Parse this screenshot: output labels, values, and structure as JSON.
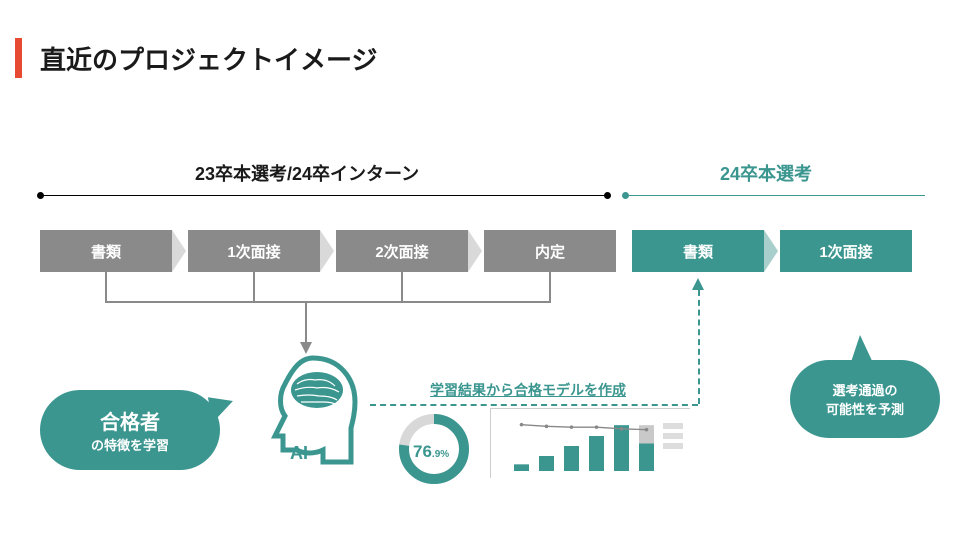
{
  "title": "直近のプロジェクトイメージ",
  "accent_color": "#e74a33",
  "teal": "#3b9690",
  "gray": "#8a8a8a",
  "sections": {
    "left_label": "23卒本選考/24卒インターン",
    "right_label": "24卒本選考"
  },
  "steps": {
    "gray": [
      "書類",
      "1次面接",
      "2次面接",
      "内定"
    ],
    "teal": [
      "書類",
      "1次面接"
    ]
  },
  "ai_label": "AI",
  "bubble_left": {
    "line1": "合格者",
    "line2": "の特徴を学習"
  },
  "bubble_right": {
    "line1": "選考通過の",
    "line2": "可能性を予測"
  },
  "mid_label": "学習結果から合格モデルを作成",
  "gauge": {
    "value_int": "76",
    "value_dec": ".9%",
    "pct": 0.769,
    "ring_color": "#3b9690",
    "ring_bg": "#d8d8d8"
  },
  "mini_chart": {
    "bars": [
      8,
      18,
      30,
      42,
      55,
      55
    ],
    "bar_color": "#3b9690",
    "bar_last_overlay": "#c9c9c9",
    "line_points": [
      56,
      52,
      50,
      50,
      46,
      44
    ],
    "line_color": "#888888",
    "bg": "#ffffff"
  }
}
